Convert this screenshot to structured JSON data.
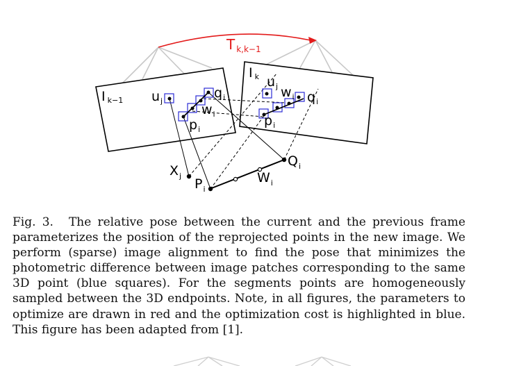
{
  "figure": {
    "pose_label": {
      "main": "T",
      "sub": "k,k−1"
    },
    "prev_image_label": {
      "main": "I",
      "sub": "k−1"
    },
    "curr_image_label": {
      "main": "I",
      "sub": "k"
    },
    "prev_points": {
      "u": {
        "main": "u",
        "sub": "j"
      },
      "q": {
        "main": "q",
        "sub": "i"
      },
      "w": {
        "main": "w",
        "sub": "i"
      },
      "p": {
        "main": "p",
        "sub": "i"
      }
    },
    "curr_points": {
      "u": {
        "main": "u",
        "sub": "j"
      },
      "q": {
        "main": "q",
        "sub": "i"
      },
      "w": {
        "main": "w",
        "sub": "i"
      },
      "p": {
        "main": "p",
        "sub": "i"
      }
    },
    "world_points": {
      "X": {
        "main": "X",
        "sub": "j"
      },
      "P": {
        "main": "P",
        "sub": "i"
      },
      "W": {
        "main": "W",
        "sub": "i"
      },
      "Q": {
        "main": "Q",
        "sub": "i"
      }
    },
    "colors": {
      "pose_arrow": "#e31a1a",
      "patch_squares": "#2b2bd6",
      "camera_frustum": "#c8c8c8"
    }
  },
  "caption": {
    "number": "Fig. 3.",
    "text": "The relative pose between the current and the previous frame parameterizes the position of the reprojected points in the new image. We perform (sparse) image alignment to find the pose that minimizes the photometric difference between image patches corresponding to the same 3D point (blue squares). For the segments points are homogeneously sampled between the 3D endpoints. Note, in all figures, the parameters to optimize are drawn in red and the optimization cost is highlighted in blue. This figure has been adapted from [1]."
  }
}
